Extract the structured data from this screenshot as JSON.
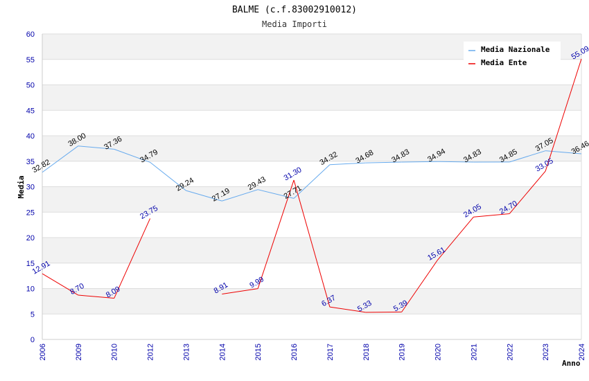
{
  "chart_data": {
    "type": "line",
    "title": "BALME (c.f.83002910012)",
    "subtitle": "Media Importi",
    "xlabel": "Anno",
    "ylabel": "Media",
    "ylim": [
      0,
      60
    ],
    "yticks": [
      "0",
      "5",
      "10",
      "15",
      "20",
      "25",
      "30",
      "35",
      "40",
      "45",
      "50",
      "55",
      "60"
    ],
    "categories": [
      "2006",
      "2009",
      "2010",
      "2012",
      "2013",
      "2014",
      "2015",
      "2016",
      "2017",
      "2018",
      "2019",
      "2020",
      "2021",
      "2022",
      "2023",
      "2024"
    ],
    "legend_position": "top-right",
    "series": [
      {
        "name": "Media Nazionale",
        "color": "#66aaee",
        "label_color": "#000000",
        "values": [
          32.82,
          38.0,
          37.36,
          34.79,
          29.24,
          27.19,
          29.43,
          27.71,
          34.32,
          34.68,
          34.83,
          34.94,
          34.83,
          34.85,
          37.05,
          36.46
        ],
        "labels": [
          "32.82",
          "38.00",
          "37.36",
          "34.79",
          "29.24",
          "27.19",
          "29.43",
          "27.71",
          "34.32",
          "34.68",
          "34.83",
          "34.94",
          "34.83",
          "34.85",
          "37.05",
          "36.46"
        ]
      },
      {
        "name": "Media Ente",
        "color": "#ee0000",
        "label_color": "#0000aa",
        "values": [
          12.91,
          8.7,
          8.09,
          23.75,
          null,
          8.91,
          9.99,
          31.3,
          6.37,
          5.33,
          5.39,
          15.61,
          24.05,
          24.7,
          33.05,
          55.09
        ],
        "labels": [
          "12.91",
          "8.70",
          "8.09",
          "23.75",
          "",
          "8.91",
          "9.99",
          "31.30",
          "6.37",
          "5.33",
          "5.39",
          "15.61",
          "24.05",
          "24.70",
          "33.05",
          "55.09"
        ]
      }
    ]
  }
}
